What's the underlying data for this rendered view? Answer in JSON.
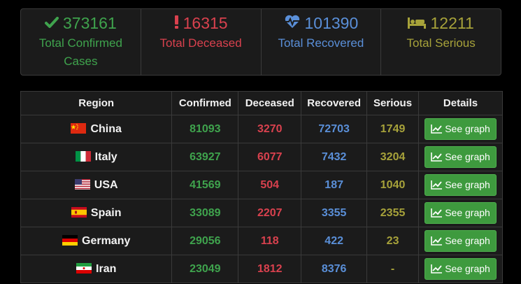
{
  "stats": {
    "confirmed": {
      "value": "373161",
      "label": "Total Confirmed Cases",
      "icon": "check-icon",
      "color": "#3fa34d"
    },
    "deceased": {
      "value": "16315",
      "label": "Total Deceased",
      "icon": "exclamation-icon",
      "color": "#d9414e"
    },
    "recovered": {
      "value": "101390",
      "label": "Total Recovered",
      "icon": "heartbeat-icon",
      "color": "#5a8fd8"
    },
    "serious": {
      "value": "12211",
      "label": "Total Serious",
      "icon": "bed-icon",
      "color": "#a7a23a"
    }
  },
  "table": {
    "headers": [
      "Region",
      "Confirmed",
      "Deceased",
      "Recovered",
      "Serious",
      "Details"
    ],
    "button_label": "See graph",
    "rows": [
      {
        "region": "China",
        "flag": "china-flag",
        "confirmed": "81093",
        "deceased": "3270",
        "recovered": "72703",
        "serious": "1749"
      },
      {
        "region": "Italy",
        "flag": "italy-flag",
        "confirmed": "63927",
        "deceased": "6077",
        "recovered": "7432",
        "serious": "3204"
      },
      {
        "region": "USA",
        "flag": "usa-flag",
        "confirmed": "41569",
        "deceased": "504",
        "recovered": "187",
        "serious": "1040"
      },
      {
        "region": "Spain",
        "flag": "spain-flag",
        "confirmed": "33089",
        "deceased": "2207",
        "recovered": "3355",
        "serious": "2355"
      },
      {
        "region": "Germany",
        "flag": "germany-flag",
        "confirmed": "29056",
        "deceased": "118",
        "recovered": "422",
        "serious": "23"
      },
      {
        "region": "Iran",
        "flag": "iran-flag",
        "confirmed": "23049",
        "deceased": "1812",
        "recovered": "8376",
        "serious": "-"
      }
    ]
  }
}
